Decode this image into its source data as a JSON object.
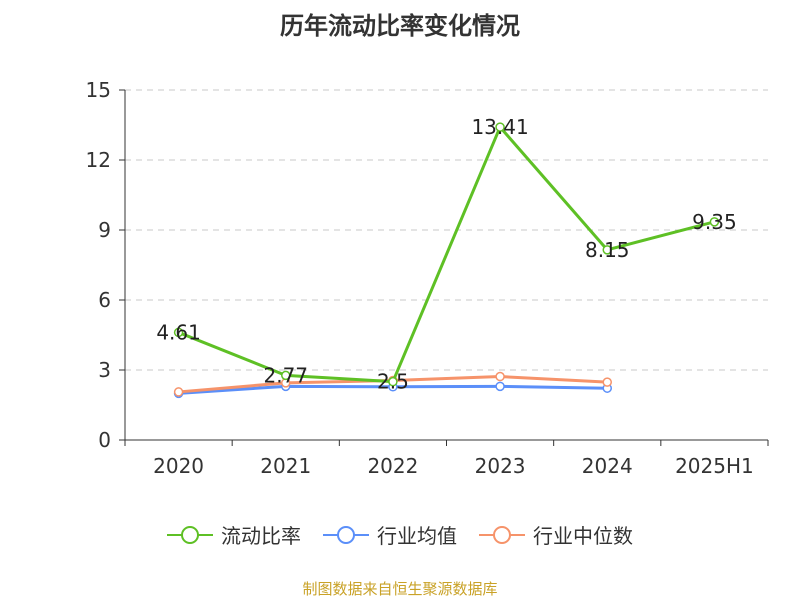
{
  "chart_data": {
    "type": "line",
    "title": "历年流动比率变化情况",
    "xlabel": "",
    "ylabel": "",
    "categories": [
      "2020",
      "2021",
      "2022",
      "2023",
      "2024",
      "2025H1"
    ],
    "ylim": [
      0,
      15
    ],
    "yticks": [
      "0",
      "3",
      "6",
      "9",
      "12",
      "15"
    ],
    "grid": true,
    "legend_position": "bottom",
    "series": [
      {
        "name": "流动比率",
        "color": "#5ec025",
        "values": [
          4.61,
          2.77,
          2.5,
          13.41,
          8.15,
          9.35
        ],
        "labels": [
          "4.61",
          "2.77",
          "2.5",
          "13.41",
          "8.15",
          "9.35"
        ],
        "show_labels": true
      },
      {
        "name": "行业均值",
        "color": "#5b8ff9",
        "values": [
          2.0,
          2.3,
          2.28,
          2.3,
          2.22,
          null
        ],
        "show_labels": false
      },
      {
        "name": "行业中位数",
        "color": "#f6936a",
        "values": [
          2.06,
          2.45,
          2.55,
          2.72,
          2.48,
          null
        ],
        "show_labels": false
      }
    ]
  },
  "source_note": "制图数据来自恒生聚源数据库"
}
